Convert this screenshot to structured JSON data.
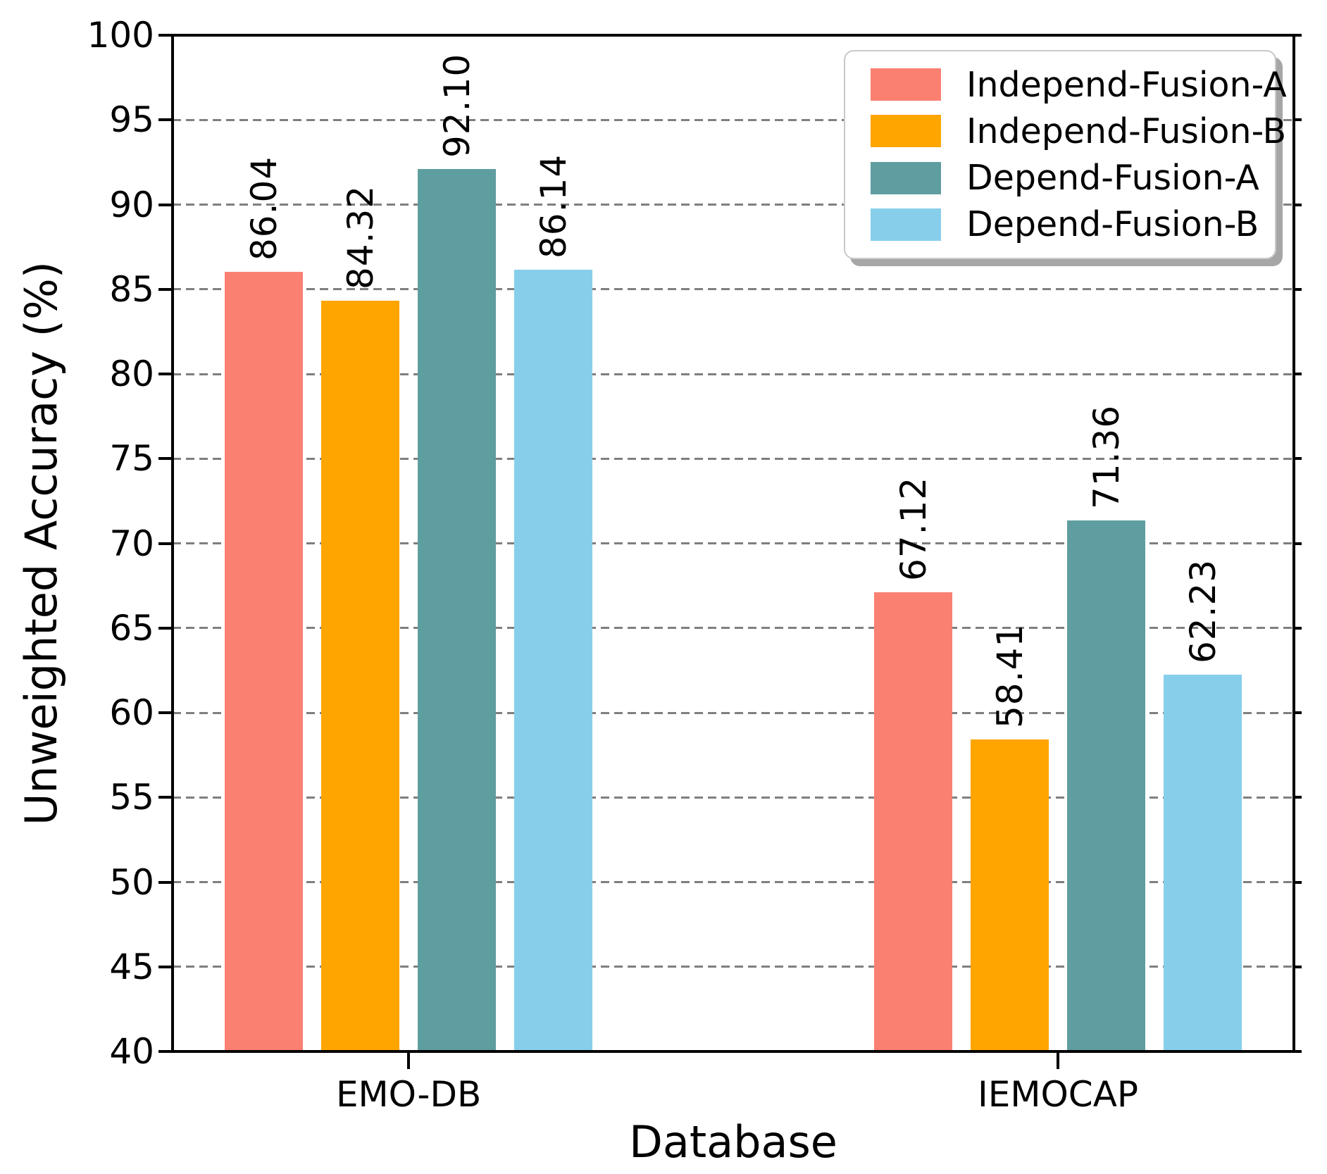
{
  "chart_data": {
    "type": "bar",
    "title": "",
    "xlabel": "Database",
    "ylabel": "Unweighted Accuracy (%)",
    "categories": [
      "EMO-DB",
      "IEMOCAP"
    ],
    "series": [
      {
        "name": "Independ-Fusion-A",
        "color": "#FA8072",
        "values": [
          86.04,
          67.12
        ],
        "labels": [
          "86.04",
          "67.12"
        ]
      },
      {
        "name": "Independ-Fusion-B",
        "color": "#FFA500",
        "values": [
          84.32,
          58.41
        ],
        "labels": [
          "84.32",
          "58.41"
        ]
      },
      {
        "name": "Depend-Fusion-A",
        "color": "#5F9EA0",
        "values": [
          92.1,
          71.36
        ],
        "labels": [
          "92.10",
          "71.36"
        ]
      },
      {
        "name": "Depend-Fusion-B",
        "color": "#87CEEB",
        "values": [
          86.14,
          62.23
        ],
        "labels": [
          "86.14",
          "62.23"
        ]
      }
    ],
    "ylim": [
      40,
      100
    ],
    "yticks": [
      40,
      45,
      50,
      55,
      60,
      65,
      70,
      75,
      80,
      85,
      90,
      95,
      100
    ],
    "grid": "horizontal dashed gray",
    "legend_position": "upper right",
    "bar_label_rotation": 90
  }
}
